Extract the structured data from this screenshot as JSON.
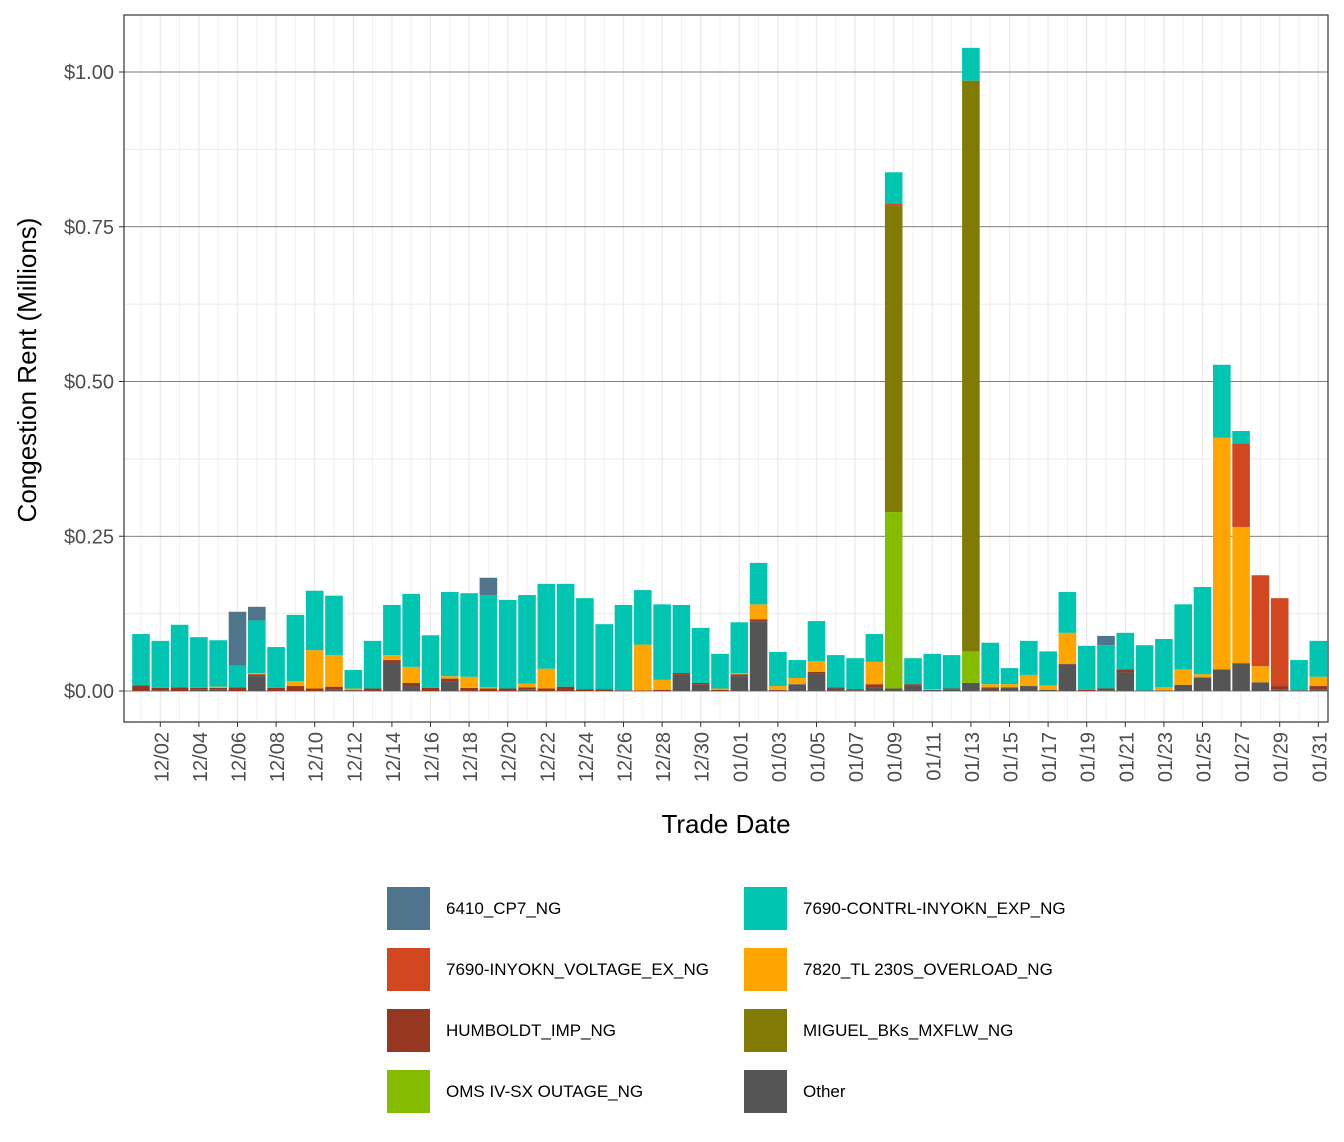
{
  "chart_data": {
    "type": "bar",
    "stacked": true,
    "xlabel": "Trade Date",
    "ylabel": "Congestion Rent (Millions)",
    "ylim": [
      -0.05,
      1.09
    ],
    "yticks": [
      0,
      0.25,
      0.5,
      0.75,
      1.0
    ],
    "ytick_labels": [
      "$0.00",
      "$0.25",
      "$0.50",
      "$0.75",
      "$1.00"
    ],
    "grid": true,
    "legend_position": "bottom",
    "x": [
      "12/01",
      "12/02",
      "12/03",
      "12/04",
      "12/05",
      "12/06",
      "12/07",
      "12/08",
      "12/09",
      "12/10",
      "12/11",
      "12/12",
      "12/13",
      "12/14",
      "12/15",
      "12/16",
      "12/17",
      "12/18",
      "12/19",
      "12/20",
      "12/21",
      "12/22",
      "12/23",
      "12/24",
      "12/25",
      "12/26",
      "12/27",
      "12/28",
      "12/29",
      "12/30",
      "12/31",
      "01/01",
      "01/02",
      "01/03",
      "01/04",
      "01/05",
      "01/06",
      "01/07",
      "01/08",
      "01/09",
      "01/10",
      "01/11",
      "01/12",
      "01/13",
      "01/14",
      "01/15",
      "01/16",
      "01/17",
      "01/18",
      "01/19",
      "01/20",
      "01/21",
      "01/22",
      "01/23",
      "01/24",
      "01/25",
      "01/26",
      "01/27",
      "01/28",
      "01/29",
      "01/30",
      "01/31"
    ],
    "xtick_labels": [
      "12/02",
      "12/04",
      "12/06",
      "12/08",
      "12/10",
      "12/12",
      "12/14",
      "12/16",
      "12/18",
      "12/20",
      "12/22",
      "12/24",
      "12/26",
      "12/28",
      "12/30",
      "01/01",
      "01/03",
      "01/05",
      "01/07",
      "01/09",
      "01/11",
      "01/13",
      "01/15",
      "01/17",
      "01/19",
      "01/21",
      "01/23",
      "01/25",
      "01/27",
      "01/29",
      "01/31"
    ],
    "series": [
      {
        "name": "Other",
        "color": "#555555",
        "values": [
          0,
          0.001,
          0,
          0.003,
          0.003,
          0,
          0.024,
          0,
          0,
          0,
          0.003,
          0.001,
          0,
          0.046,
          0.008,
          0,
          0.016,
          0,
          0,
          0,
          0.002,
          0,
          0,
          0,
          0,
          0,
          0,
          0,
          0.026,
          0.01,
          0,
          0.024,
          0.112,
          0.001,
          0.011,
          0.029,
          0.004,
          0.001,
          0.005,
          0.004,
          0.009,
          0.002,
          0.002,
          0.013,
          0.004,
          0.006,
          0.008,
          0.002,
          0.043,
          0,
          0.001,
          0.03,
          0.001,
          0.001,
          0.01,
          0.022,
          0.035,
          0.045,
          0.014,
          0.002,
          0,
          0.002
        ]
      },
      {
        "name": "HUMBOLDT_IMP_NG",
        "color": "#963722",
        "values": [
          0.009,
          0.004,
          0.006,
          0.002,
          0.002,
          0.006,
          0.003,
          0.005,
          0.008,
          0.004,
          0.004,
          0.001,
          0.004,
          0.004,
          0.005,
          0.005,
          0.004,
          0.005,
          0.004,
          0.004,
          0.004,
          0.004,
          0.007,
          0.003,
          0.003,
          0.001,
          0.001,
          0.002,
          0.003,
          0.003,
          0.002,
          0.003,
          0.004,
          0.001,
          0,
          0.002,
          0.002,
          0.002,
          0.006,
          0,
          0.002,
          0,
          0.002,
          0,
          0.002,
          0,
          0,
          0,
          0.001,
          0.002,
          0.003,
          0.005,
          0,
          0,
          0,
          0,
          0,
          0,
          0,
          0.006,
          0.001,
          0.006
        ]
      },
      {
        "name": "OMS IV-SX OUTAGE_NG",
        "color": "#84bd00",
        "values": [
          0,
          0,
          0,
          0,
          0,
          0,
          0,
          0,
          0,
          0,
          0,
          0,
          0,
          0,
          0,
          0,
          0,
          0,
          0,
          0,
          0,
          0,
          0,
          0,
          0,
          0,
          0,
          0,
          0,
          0,
          0,
          0,
          0,
          0,
          0,
          0,
          0,
          0,
          0,
          0.285,
          0,
          0,
          0,
          0.051,
          0,
          0,
          0,
          0,
          0,
          0,
          0,
          0,
          0,
          0,
          0,
          0,
          0,
          0,
          0,
          0,
          0,
          0
        ]
      },
      {
        "name": "MIGUEL_BKs_MXFLW_NG",
        "color": "#817a05",
        "values": [
          0,
          0,
          0,
          0,
          0,
          0,
          0,
          0,
          0,
          0,
          0,
          0,
          0,
          0,
          0,
          0,
          0,
          0,
          0,
          0,
          0,
          0,
          0,
          0,
          0,
          0,
          0,
          0,
          0,
          0,
          0,
          0,
          0,
          0,
          0,
          0,
          0,
          0,
          0,
          0.496,
          0,
          0,
          0,
          0.922,
          0,
          0,
          0,
          0,
          0,
          0,
          0,
          0,
          0,
          0,
          0,
          0,
          0,
          0,
          0,
          0,
          0,
          0
        ]
      },
      {
        "name": "7820_TL 230S_OVERLOAD_NG",
        "color": "#ffa500",
        "values": [
          0,
          0,
          0,
          0,
          0.002,
          0,
          0.002,
          0,
          0.008,
          0.062,
          0.051,
          0.002,
          0,
          0.008,
          0.026,
          0,
          0.004,
          0.018,
          0.002,
          0,
          0.006,
          0.032,
          0,
          0,
          0,
          0,
          0.074,
          0.016,
          0,
          0,
          0.002,
          0.002,
          0.024,
          0.006,
          0.01,
          0.017,
          0,
          0,
          0.036,
          0,
          0,
          0.001,
          0,
          0,
          0.005,
          0.005,
          0.018,
          0.007,
          0.05,
          0,
          0,
          0,
          0,
          0.005,
          0.025,
          0.005,
          0.374,
          0.22,
          0.026,
          0,
          0,
          0.015
        ]
      },
      {
        "name": "7690-INYOKN_VOLTAGE_EX_NG",
        "color": "#d24720",
        "values": [
          0,
          0,
          0,
          0,
          0,
          0,
          0,
          0,
          0,
          0,
          0,
          0,
          0,
          0,
          0,
          0,
          0,
          0,
          0,
          0,
          0,
          0,
          0,
          0,
          0,
          0,
          0,
          0,
          0,
          0,
          0,
          0,
          0,
          0,
          0,
          0,
          0,
          0,
          0,
          0.003,
          0,
          0,
          0,
          0,
          0,
          0,
          0,
          0,
          0,
          0,
          0,
          0,
          0,
          0,
          0,
          0,
          0,
          0.135,
          0.147,
          0.142,
          0,
          0
        ]
      },
      {
        "name": "7690-CONTRL-INYOKN_EXP_NG",
        "color": "#00c5b0",
        "values": [
          0.083,
          0.076,
          0.101,
          0.082,
          0.075,
          0.035,
          0.085,
          0.066,
          0.107,
          0.096,
          0.096,
          0.03,
          0.077,
          0.081,
          0.118,
          0.085,
          0.136,
          0.135,
          0.149,
          0.143,
          0.143,
          0.137,
          0.166,
          0.147,
          0.105,
          0.138,
          0.088,
          0.122,
          0.11,
          0.089,
          0.056,
          0.082,
          0.067,
          0.055,
          0.029,
          0.065,
          0.052,
          0.05,
          0.045,
          0.05,
          0.042,
          0.057,
          0.054,
          0.053,
          0.067,
          0.026,
          0.055,
          0.055,
          0.066,
          0.071,
          0.07,
          0.059,
          0.073,
          0.078,
          0.105,
          0.141,
          0.118,
          0.02,
          0,
          0,
          0.049,
          0.058
        ]
      },
      {
        "name": "6410_CP7_NG",
        "color": "#4e758b",
        "values": [
          0,
          0,
          0,
          0,
          0,
          0.087,
          0.022,
          0,
          0,
          0,
          0,
          0,
          0,
          0,
          0,
          0,
          0,
          0,
          0.028,
          0,
          0,
          0,
          0,
          0,
          0,
          0,
          0,
          0,
          0,
          0,
          0,
          0,
          0,
          0,
          0,
          0,
          0,
          0,
          0,
          0,
          0,
          0,
          0,
          0,
          0,
          0,
          0,
          0,
          0,
          0,
          0.015,
          0,
          0,
          0,
          0,
          0,
          0,
          0,
          0,
          0,
          0,
          0
        ]
      }
    ]
  },
  "legend": [
    {
      "label": "6410_CP7_NG",
      "color": "#4e758b"
    },
    {
      "label": "7690-CONTRL-INYOKN_EXP_NG",
      "color": "#00c5b0"
    },
    {
      "label": "7690-INYOKN_VOLTAGE_EX_NG",
      "color": "#d24720"
    },
    {
      "label": "7820_TL 230S_OVERLOAD_NG",
      "color": "#ffa500"
    },
    {
      "label": "HUMBOLDT_IMP_NG",
      "color": "#963722"
    },
    {
      "label": "MIGUEL_BKs_MXFLW_NG",
      "color": "#817a05"
    },
    {
      "label": "OMS IV-SX OUTAGE_NG",
      "color": "#84bd00"
    },
    {
      "label": "Other",
      "color": "#555555"
    }
  ]
}
